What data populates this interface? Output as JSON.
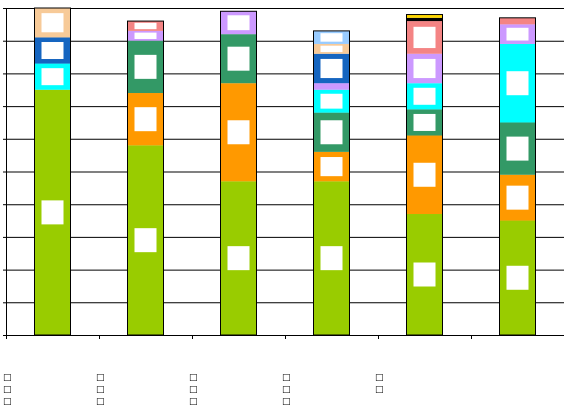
{
  "chart_data": {
    "type": "bar",
    "stacked": true,
    "categories": [
      "□□□",
      "□□□",
      "□□□",
      "□□□",
      "□□",
      ""
    ],
    "ylim": [
      0,
      10
    ],
    "grid": true,
    "legend": "none",
    "series": [
      {
        "color": "#99CC00",
        "values": [
          7.5,
          5.8,
          4.7,
          4.7,
          3.7,
          3.5
        ]
      },
      {
        "color": "#FF9900",
        "values": [
          0.0,
          1.6,
          3.0,
          0.9,
          2.4,
          1.4
        ]
      },
      {
        "color": "#339966",
        "values": [
          0.0,
          1.6,
          1.5,
          1.2,
          0.8,
          1.6
        ]
      },
      {
        "color": "#00FFFF",
        "values": [
          0.8,
          0.0,
          0.0,
          0.7,
          0.8,
          2.4
        ]
      },
      {
        "color": "#CC99FF",
        "values": [
          0.0,
          0.3,
          0.7,
          0.2,
          0.9,
          0.6
        ]
      },
      {
        "color": "#1565C0",
        "values": [
          0.8,
          0.0,
          0.0,
          0.9,
          0.0,
          0.0
        ]
      },
      {
        "color": "#F7CA98",
        "values": [
          0.9,
          0.0,
          0.0,
          0.3,
          0.0,
          0.0
        ]
      },
      {
        "color": "#F48484",
        "values": [
          0.0,
          0.3,
          0.0,
          0.0,
          1.0,
          0.2
        ]
      },
      {
        "color": "#000000",
        "values": [
          0.0,
          0.0,
          0.0,
          0.0,
          0.1,
          0.0
        ]
      },
      {
        "color": "#FFD700",
        "values": [
          0.0,
          0.0,
          0.0,
          0.0,
          0.1,
          0.0
        ]
      },
      {
        "color": "#99CCFF",
        "values": [
          0.0,
          0.0,
          0.0,
          0.4,
          0.0,
          0.0
        ]
      }
    ]
  }
}
